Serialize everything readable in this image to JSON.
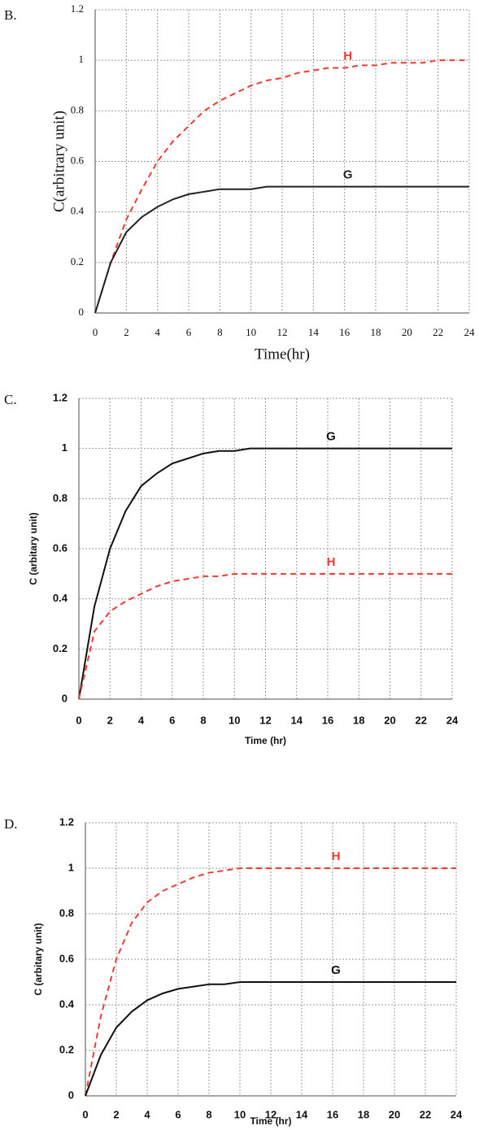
{
  "chart_data": [
    {
      "type": "line",
      "label": "B.",
      "xlabel": "Time(hr)",
      "ylabel": "C(arbitrary unit)",
      "x": [
        0,
        1,
        2,
        3,
        4,
        5,
        6,
        7,
        8,
        9,
        10,
        11,
        12,
        13,
        14,
        15,
        16,
        17,
        18,
        19,
        20,
        21,
        22,
        23,
        24
      ],
      "series": [
        {
          "name": "H",
          "color": "#ee3b33",
          "dashed": true,
          "values": [
            0,
            0.2,
            0.37,
            0.49,
            0.6,
            0.68,
            0.74,
            0.8,
            0.84,
            0.87,
            0.9,
            0.92,
            0.93,
            0.95,
            0.96,
            0.97,
            0.97,
            0.98,
            0.98,
            0.99,
            0.99,
            0.99,
            1,
            1,
            1
          ]
        },
        {
          "name": "G",
          "color": "#222222",
          "dashed": false,
          "values": [
            0,
            0.2,
            0.32,
            0.38,
            0.42,
            0.45,
            0.47,
            0.48,
            0.49,
            0.49,
            0.49,
            0.5,
            0.5,
            0.5,
            0.5,
            0.5,
            0.5,
            0.5,
            0.5,
            0.5,
            0.5,
            0.5,
            0.5,
            0.5,
            0.5
          ]
        }
      ],
      "xlim": [
        0,
        24
      ],
      "xticks": [
        0,
        2,
        4,
        6,
        8,
        10,
        12,
        14,
        16,
        18,
        20,
        22,
        24
      ],
      "ylim": [
        0,
        1.2
      ],
      "yticks": [
        0,
        0.2,
        0.4,
        0.6,
        0.8,
        1,
        1.2
      ],
      "grid": true
    },
    {
      "type": "line",
      "label": "C.",
      "xlabel": "Time (hr)",
      "ylabel": "C (arbitary unit)",
      "x": [
        0,
        1,
        2,
        3,
        4,
        5,
        6,
        7,
        8,
        9,
        10,
        11,
        12,
        13,
        14,
        15,
        16,
        17,
        18,
        19,
        20,
        21,
        22,
        23,
        24
      ],
      "series": [
        {
          "name": "G",
          "color": "#111111",
          "dashed": false,
          "values": [
            0,
            0.37,
            0.6,
            0.75,
            0.85,
            0.9,
            0.94,
            0.96,
            0.98,
            0.99,
            0.99,
            1,
            1,
            1,
            1,
            1,
            1,
            1,
            1,
            1,
            1,
            1,
            1,
            1,
            1
          ]
        },
        {
          "name": "H",
          "color": "#ee3b33",
          "dashed": true,
          "values": [
            0,
            0.27,
            0.35,
            0.39,
            0.42,
            0.45,
            0.47,
            0.48,
            0.49,
            0.49,
            0.5,
            0.5,
            0.5,
            0.5,
            0.5,
            0.5,
            0.5,
            0.5,
            0.5,
            0.5,
            0.5,
            0.5,
            0.5,
            0.5,
            0.5
          ]
        }
      ],
      "xlim": [
        0,
        24
      ],
      "xticks": [
        0,
        2,
        4,
        6,
        8,
        10,
        12,
        14,
        16,
        18,
        20,
        22,
        24
      ],
      "ylim": [
        0,
        1.2
      ],
      "yticks": [
        0,
        0.2,
        0.4,
        0.6,
        0.8,
        1,
        1.2
      ],
      "grid": true
    },
    {
      "type": "line",
      "label": "D.",
      "xlabel": "Time (hr)",
      "ylabel": "C (arbitary unit)",
      "x": [
        0,
        1,
        2,
        3,
        4,
        5,
        6,
        7,
        8,
        9,
        10,
        11,
        12,
        13,
        14,
        15,
        16,
        17,
        18,
        19,
        20,
        21,
        22,
        23,
        24
      ],
      "series": [
        {
          "name": "H",
          "color": "#ee3b33",
          "dashed": true,
          "values": [
            0,
            0.35,
            0.6,
            0.76,
            0.85,
            0.9,
            0.93,
            0.96,
            0.98,
            0.99,
            1,
            1,
            1,
            1,
            1,
            1,
            1,
            1,
            1,
            1,
            1,
            1,
            1,
            1,
            1
          ]
        },
        {
          "name": "G",
          "color": "#111111",
          "dashed": false,
          "values": [
            0,
            0.18,
            0.3,
            0.37,
            0.42,
            0.45,
            0.47,
            0.48,
            0.49,
            0.49,
            0.5,
            0.5,
            0.5,
            0.5,
            0.5,
            0.5,
            0.5,
            0.5,
            0.5,
            0.5,
            0.5,
            0.5,
            0.5,
            0.5,
            0.5
          ]
        }
      ],
      "xlim": [
        0,
        24
      ],
      "xticks": [
        0,
        2,
        4,
        6,
        8,
        10,
        12,
        14,
        16,
        18,
        20,
        22,
        24
      ],
      "ylim": [
        0,
        1.2
      ],
      "yticks": [
        0,
        0.2,
        0.4,
        0.6,
        0.8,
        1,
        1.2
      ],
      "grid": true
    }
  ]
}
